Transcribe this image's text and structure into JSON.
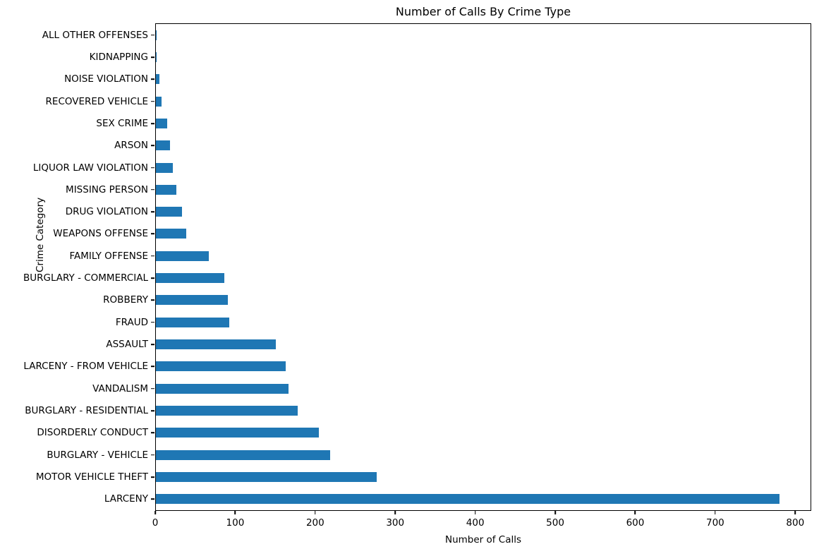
{
  "chart_data": {
    "type": "bar",
    "orientation": "horizontal",
    "title": "Number of Calls By Crime Type",
    "xlabel": "Number of Calls",
    "ylabel": "Crime Category",
    "bar_color": "#1f77b4",
    "grid": false,
    "legend_position": "none",
    "xlim": [
      0,
      820
    ],
    "xticks": [
      0,
      100,
      200,
      300,
      400,
      500,
      600,
      700,
      800
    ],
    "categories_top_to_bottom": [
      "ALL OTHER OFFENSES",
      "KIDNAPPING",
      "NOISE VIOLATION",
      "RECOVERED VEHICLE",
      "SEX CRIME",
      "ARSON",
      "LIQUOR LAW VIOLATION",
      "MISSING PERSON",
      "DRUG VIOLATION",
      "WEAPONS OFFENSE",
      "FAMILY OFFENSE",
      "BURGLARY - COMMERCIAL",
      "ROBBERY",
      "FRAUD",
      "ASSAULT",
      "LARCENY - FROM VEHICLE",
      "VANDALISM",
      "BURGLARY - RESIDENTIAL",
      "DISORDERLY CONDUCT",
      "BURGLARY - VEHICLE",
      "MOTOR VEHICLE THEFT",
      "LARCENY"
    ],
    "values": [
      1,
      1,
      4,
      7,
      14,
      18,
      21,
      26,
      33,
      38,
      66,
      86,
      90,
      92,
      150,
      163,
      166,
      178,
      204,
      218,
      277,
      781
    ]
  }
}
